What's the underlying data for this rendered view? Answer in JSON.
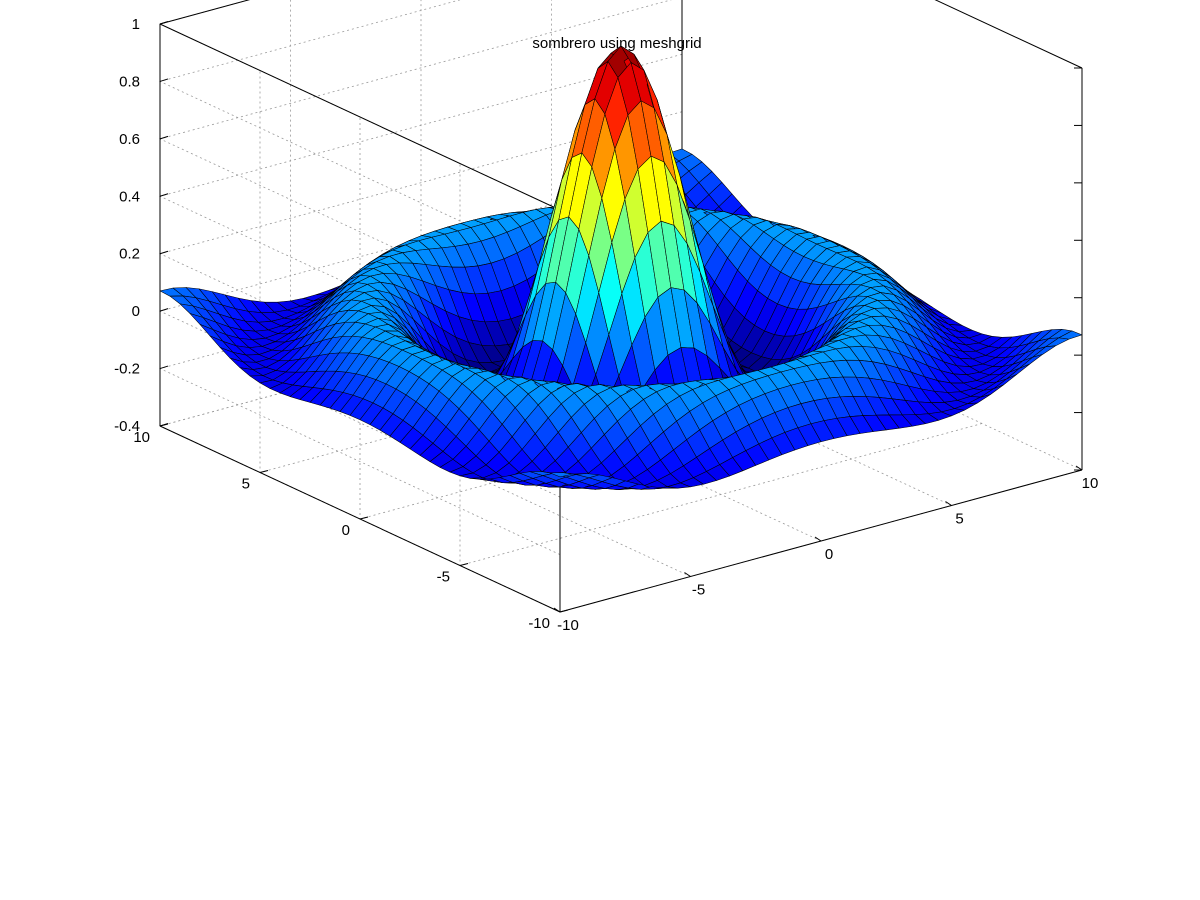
{
  "chart_data": {
    "type": "surface",
    "title": "sombrero using meshgrid",
    "function": "z = sin(r)/r, r = sqrt(x^2 + y^2)",
    "x": {
      "range": [
        -10,
        10
      ],
      "ticks": [
        -10,
        -5,
        0,
        5,
        10
      ],
      "tick_labels": [
        "-10",
        "-5",
        "0",
        "5",
        "10"
      ]
    },
    "y": {
      "range": [
        -10,
        10
      ],
      "ticks": [
        -10,
        -5,
        0,
        5,
        10
      ],
      "tick_labels": [
        "-10",
        "-5",
        "0",
        "5",
        "10"
      ]
    },
    "z": {
      "range": [
        -0.4,
        1
      ],
      "ticks": [
        -0.4,
        -0.2,
        0,
        0.2,
        0.4,
        0.6,
        0.8,
        1
      ],
      "tick_labels": [
        "-0.4",
        "-0.2",
        "0",
        "0.2",
        "0.4",
        "0.6",
        "0.8",
        "1"
      ]
    },
    "grid_points": 41,
    "colormap": "jet",
    "grid": true
  }
}
